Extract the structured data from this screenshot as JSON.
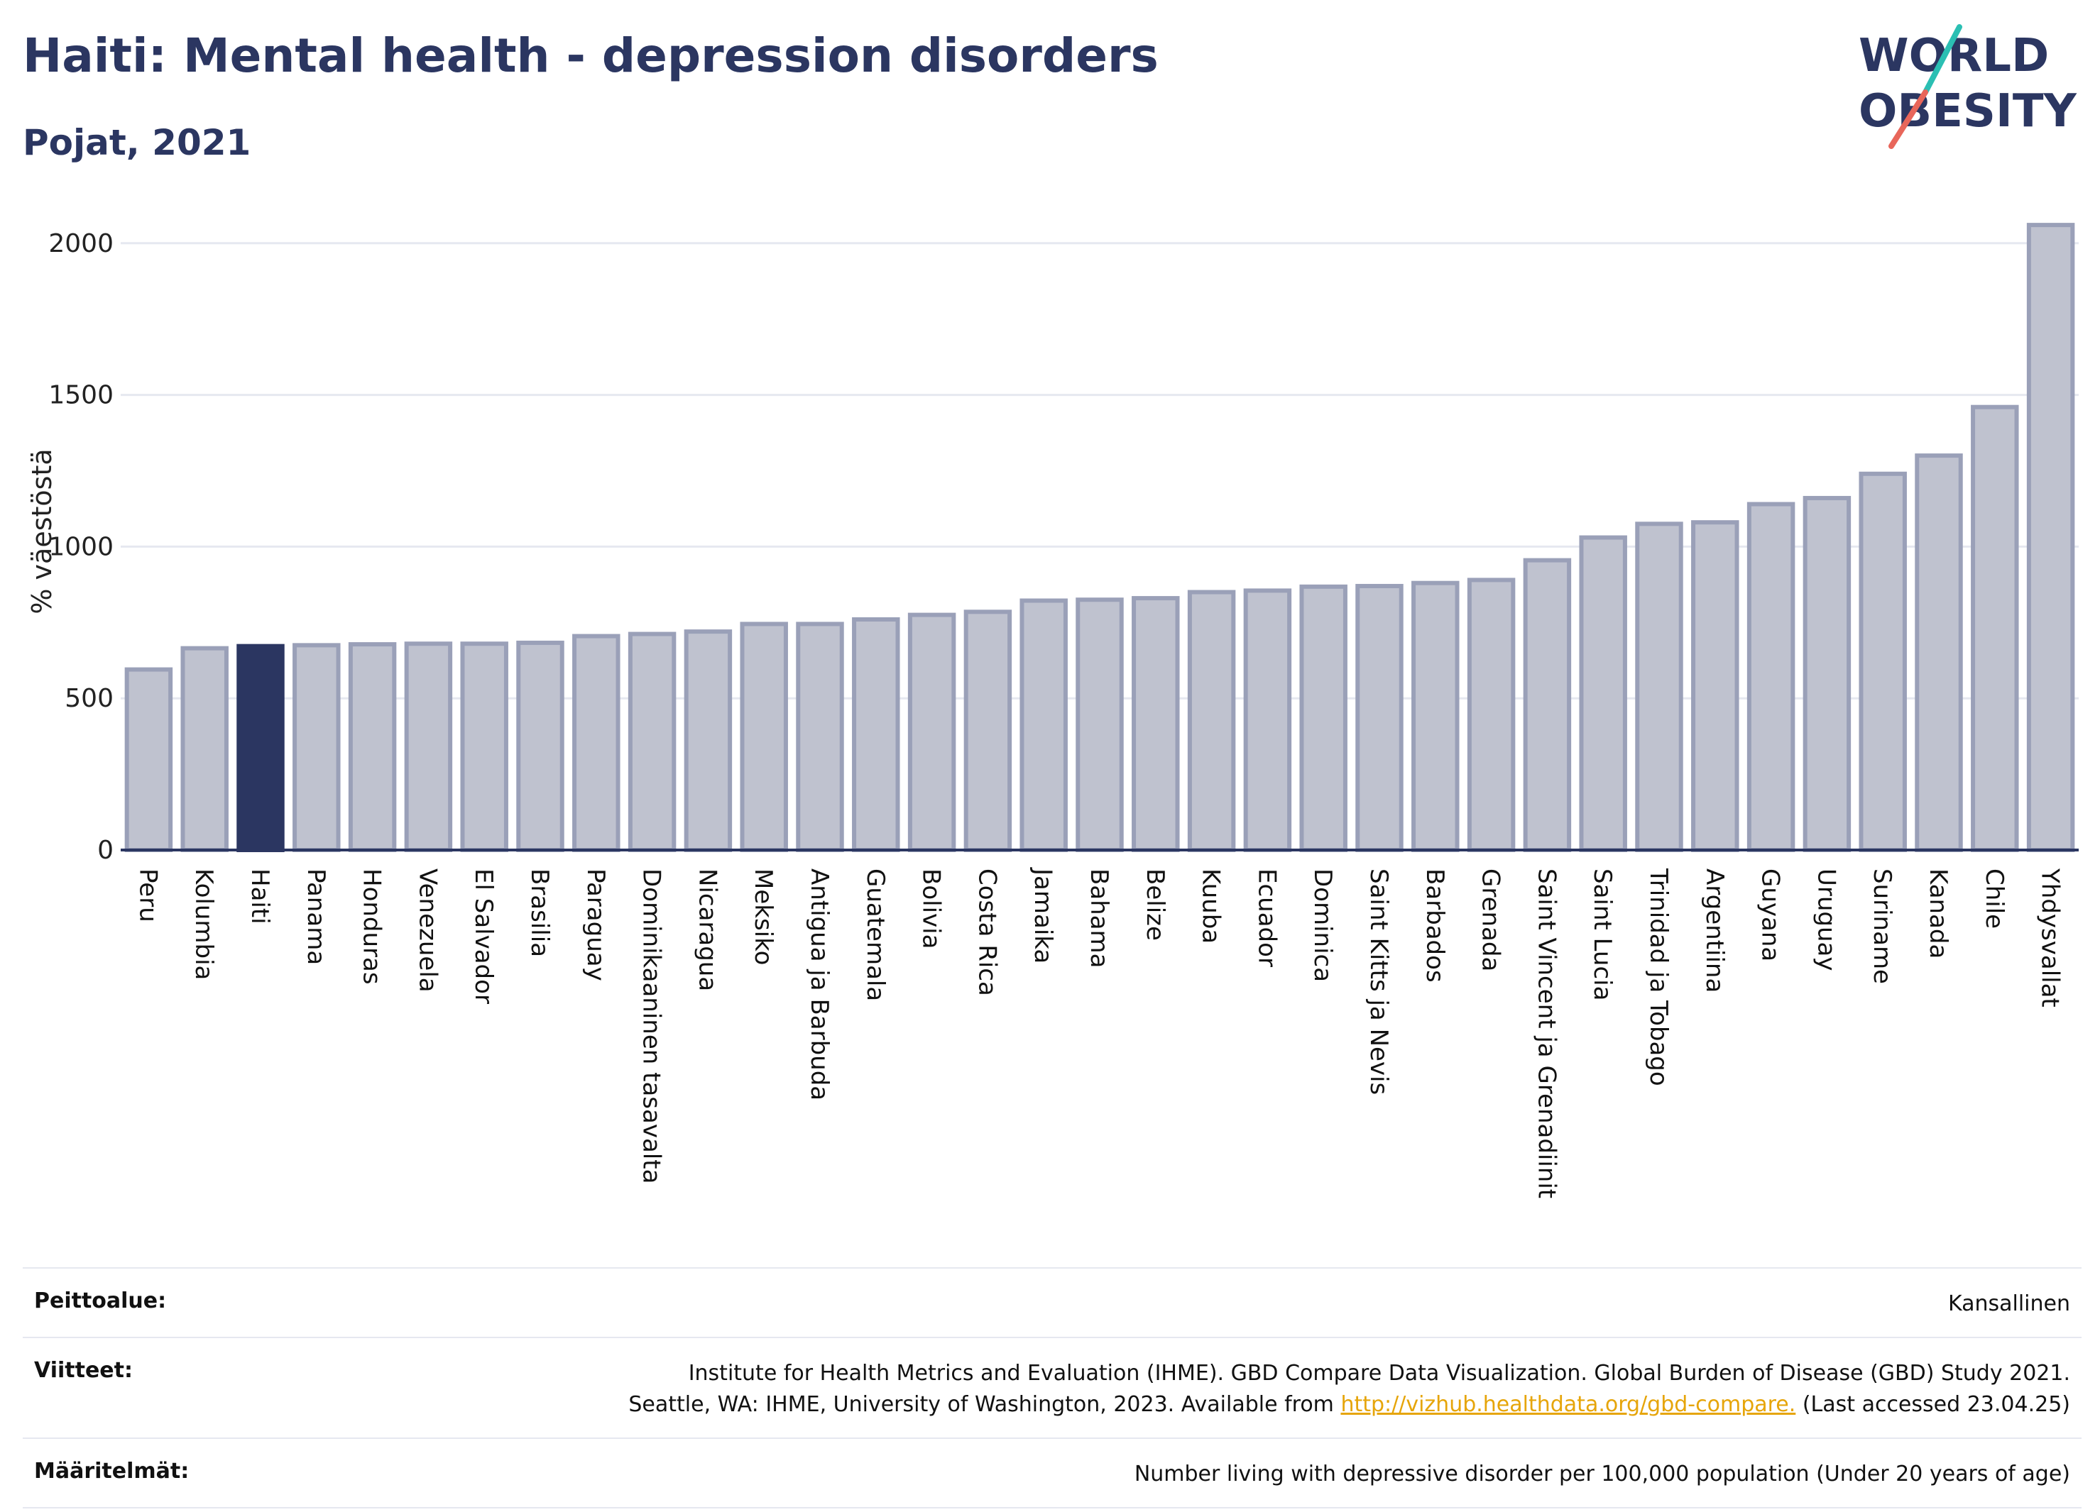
{
  "header": {
    "title": "Haiti: Mental health - depression disorders",
    "subtitle": "Pojat, 2021"
  },
  "logo": {
    "line1": "WORLD",
    "line2": "OBESITY",
    "accent_teal": "#2bbfb3",
    "accent_red": "#e8665a"
  },
  "colors": {
    "highlight": "#2b3661",
    "bar_fill": "#bfc2cf",
    "bar_stroke": "#9aa0b8",
    "grid": "#e6e8f0",
    "text": "#2b3661"
  },
  "chart_data": {
    "type": "bar",
    "ylabel": "% väestöstä",
    "ylim": [
      0,
      2100
    ],
    "yticks": [
      0,
      500,
      1000,
      1500,
      2000
    ],
    "grid": true,
    "highlight": "Haiti",
    "categories": [
      "Peru",
      "Kolumbia",
      "Haiti",
      "Panama",
      "Honduras",
      "Venezuela",
      "El Salvador",
      "Brasilia",
      "Paraguay",
      "Dominikaaninen tasavalta",
      "Nicaragua",
      "Meksiko",
      "Antigua ja Barbuda",
      "Guatemala",
      "Bolivia",
      "Costa Rica",
      "Jamaika",
      "Bahama",
      "Belize",
      "Kuuba",
      "Ecuador",
      "Dominica",
      "Saint Kitts ja Nevis",
      "Barbados",
      "Grenada",
      "Saint Vincent ja Grenadiinit",
      "Saint Lucia",
      "Trinidad ja Tobago",
      "Argentiina",
      "Guyana",
      "Uruguay",
      "Suriname",
      "Kanada",
      "Chile",
      "Yhdysvallat"
    ],
    "values": [
      595,
      665,
      672,
      675,
      678,
      680,
      680,
      683,
      705,
      712,
      720,
      745,
      745,
      760,
      775,
      785,
      822,
      825,
      830,
      850,
      855,
      868,
      870,
      880,
      890,
      955,
      1030,
      1075,
      1080,
      1140,
      1160,
      1240,
      1300,
      1460,
      2060
    ]
  },
  "footer": {
    "coverage_label": "Peittoalue:",
    "coverage_value": "Kansallinen",
    "refs_label": "Viitteet:",
    "refs_line1": "Institute for Health Metrics and Evaluation (IHME). GBD Compare Data Visualization. Global Burden of Disease (GBD) Study 2021.",
    "refs_line2_prefix": "Seattle, WA: IHME, University of Washington, 2023. Available from ",
    "refs_link": "http://vizhub.healthdata.org/gbd-compare.",
    "refs_line2_suffix": " (Last accessed 23.04.25)",
    "def_label": "Määritelmät:",
    "def_value": "Number living with depressive disorder per 100,000 population (Under 20 years of age)"
  }
}
